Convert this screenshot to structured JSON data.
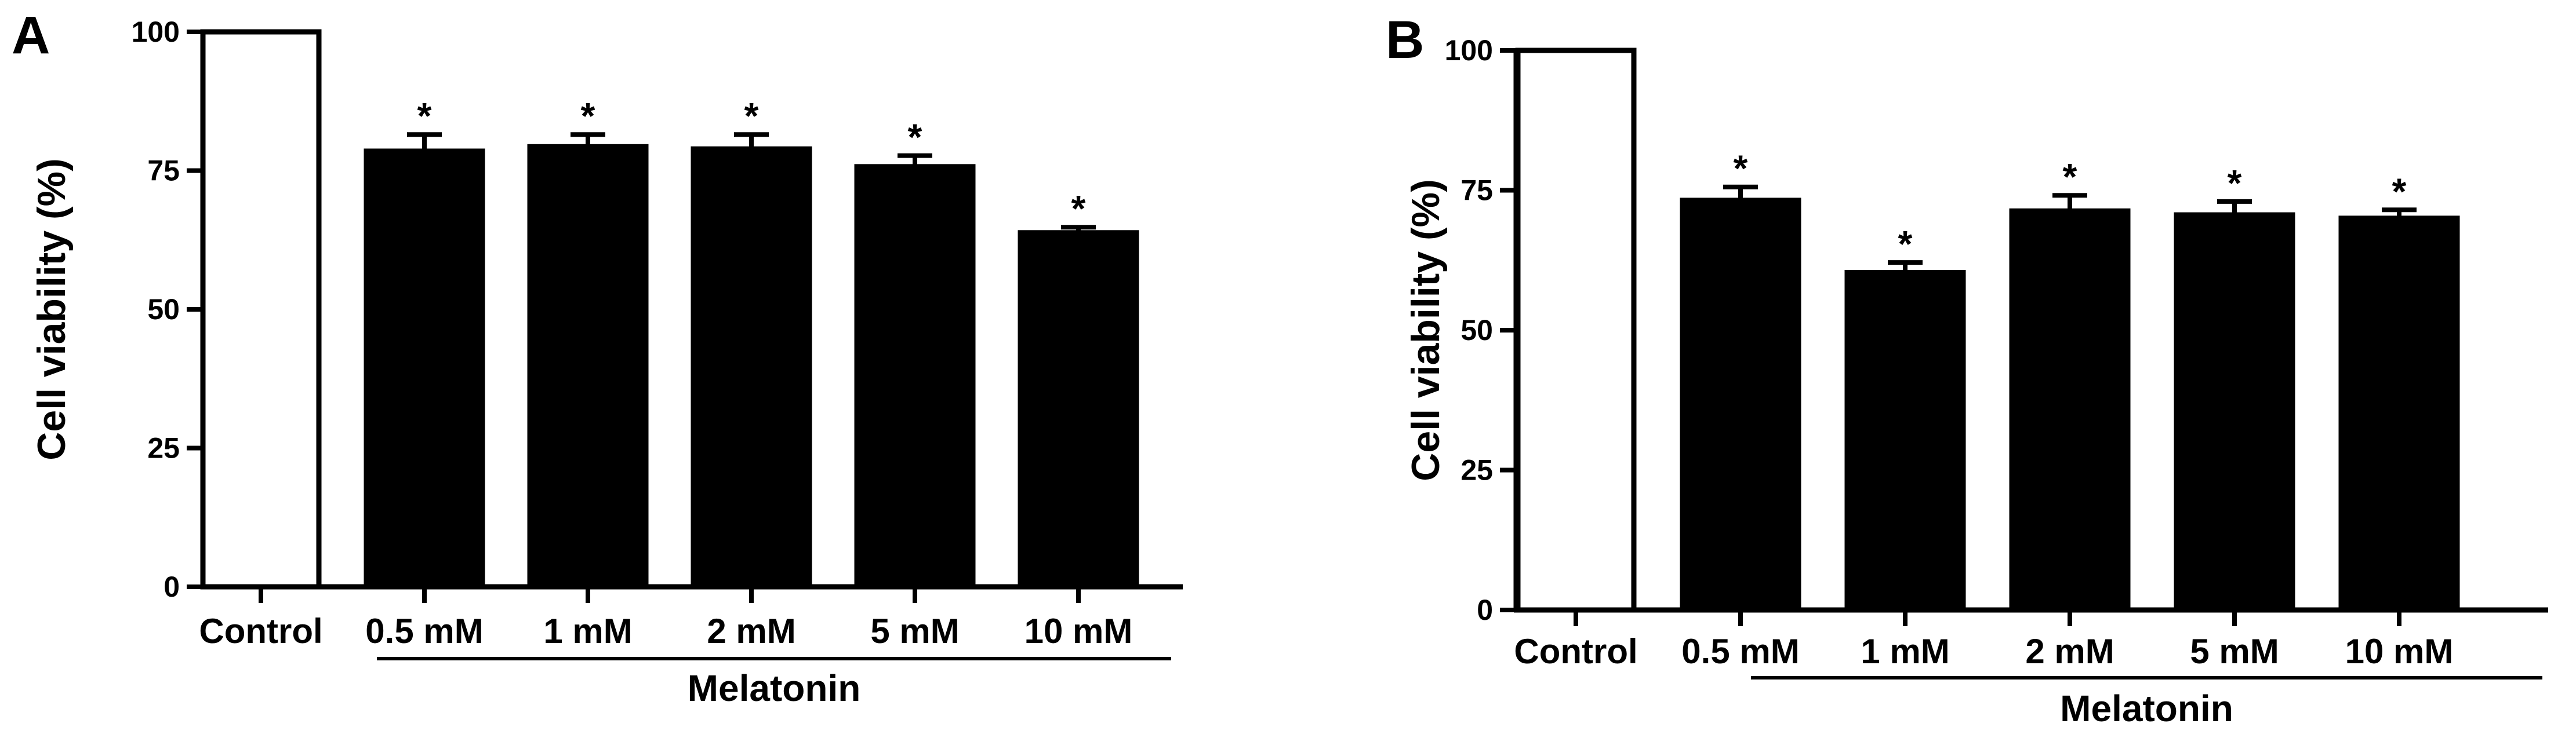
{
  "chart_data": [
    {
      "panel_label": "A",
      "type": "bar",
      "categories": [
        "Control",
        "0.5 mM",
        "1 mM",
        "2 mM",
        "5 mM",
        "10 mM"
      ],
      "values": [
        100,
        78.5,
        79.3,
        78.9,
        75.7,
        63.8
      ],
      "errors": [
        0,
        3.0,
        2.2,
        2.6,
        2.0,
        1.0
      ],
      "significance": [
        "",
        "*",
        "*",
        "*",
        "*",
        "*"
      ],
      "group_label": "Melatonin",
      "ylabel": "Cell viability (%)",
      "xlabel": "",
      "ylim": [
        0,
        100
      ],
      "yticks": [
        0,
        25,
        50,
        75,
        100
      ],
      "colors": [
        "#ffffff",
        "#000000",
        "#000000",
        "#000000",
        "#000000",
        "#000000"
      ]
    },
    {
      "panel_label": "B",
      "type": "bar",
      "categories": [
        "Control",
        "0.5 mM",
        "1 mM",
        "2 mM",
        "5 mM",
        "10 mM"
      ],
      "values": [
        100,
        73.2,
        60.3,
        71.3,
        70.6,
        70.0
      ],
      "errors": [
        0,
        2.4,
        1.8,
        2.8,
        2.4,
        1.5
      ],
      "significance": [
        "",
        "*",
        "*",
        "*",
        "*",
        "*"
      ],
      "group_label": "Melatonin",
      "ylabel": "Cell viability (%)",
      "xlabel": "",
      "ylim": [
        0,
        100
      ],
      "yticks": [
        0,
        25,
        50,
        75,
        100
      ],
      "colors": [
        "#ffffff",
        "#000000",
        "#000000",
        "#000000",
        "#000000",
        "#000000"
      ]
    }
  ]
}
